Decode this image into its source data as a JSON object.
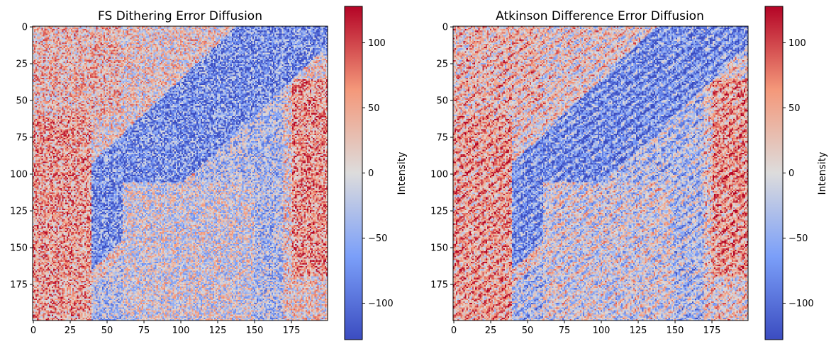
{
  "figure": {
    "background": "#ffffff"
  },
  "chart_data": [
    {
      "type": "heatmap",
      "title": "FS Dithering Error Diffusion",
      "xlabel": "",
      "ylabel": "",
      "xlim": [
        0,
        199
      ],
      "ylim": [
        199,
        0
      ],
      "xticks": [
        0,
        25,
        50,
        75,
        100,
        125,
        150,
        175
      ],
      "yticks": [
        0,
        25,
        50,
        75,
        100,
        125,
        150,
        175
      ],
      "grid": false,
      "colormap": "coolwarm",
      "colorbar": {
        "label": "Intensity",
        "range": [
          -128,
          128
        ],
        "ticks": [
          -100,
          -50,
          0,
          50,
          100
        ],
        "tick_labels": [
          "−100",
          "−50",
          "0",
          "50",
          "100"
        ]
      }
    },
    {
      "type": "heatmap",
      "title": "Atkinson Difference Error Diffusion",
      "xlabel": "",
      "ylabel": "",
      "xlim": [
        0,
        199
      ],
      "ylim": [
        199,
        0
      ],
      "xticks": [
        0,
        25,
        50,
        75,
        100,
        125,
        150,
        175
      ],
      "yticks": [
        0,
        25,
        50,
        75,
        100,
        125,
        150,
        175
      ],
      "grid": false,
      "colormap": "coolwarm",
      "colorbar": {
        "label": "Intensity",
        "range": [
          -128,
          128
        ],
        "ticks": [
          -100,
          -50,
          0,
          50,
          100
        ],
        "tick_labels": [
          "−100",
          "−50",
          "0",
          "50",
          "100"
        ]
      }
    }
  ]
}
